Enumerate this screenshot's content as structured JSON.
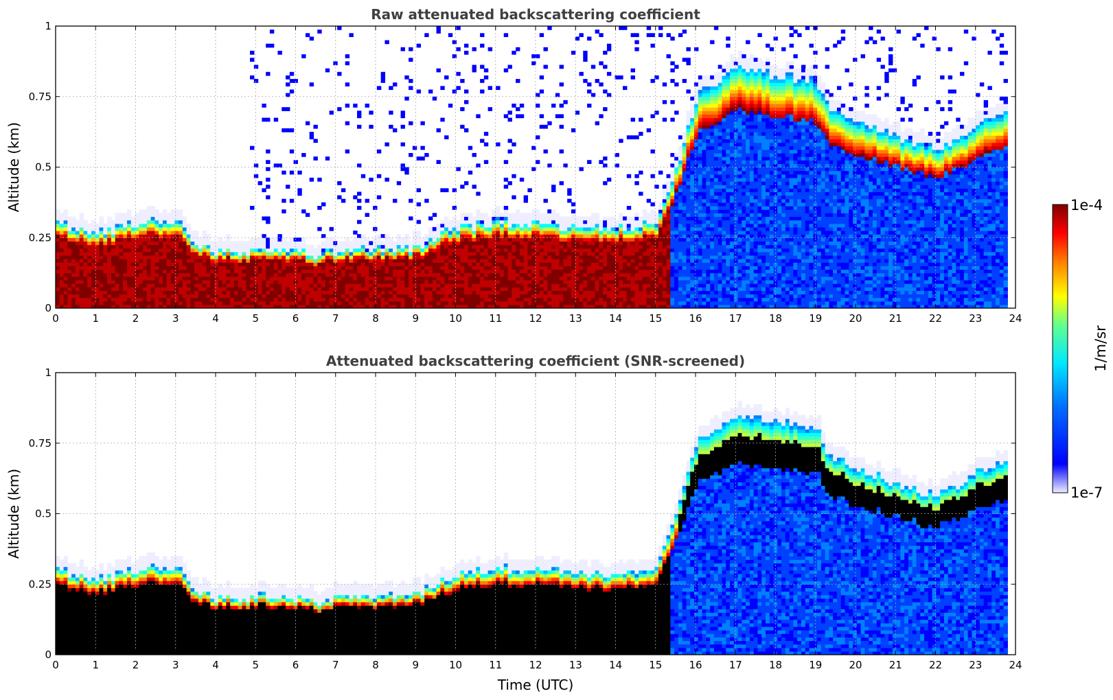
{
  "chart_data": [
    {
      "type": "heatmap",
      "title": "Raw attenuated backscattering coefficient",
      "xlabel": "",
      "ylabel": "Altitude (km)",
      "xlim": [
        0,
        24
      ],
      "ylim": [
        0,
        1
      ],
      "xticks": [
        "0",
        "1",
        "2",
        "3",
        "4",
        "5",
        "6",
        "7",
        "8",
        "9",
        "10",
        "11",
        "12",
        "13",
        "14",
        "15",
        "16",
        "17",
        "18",
        "19",
        "20",
        "21",
        "22",
        "23",
        "24"
      ],
      "yticks": [
        "0",
        "0.25",
        "0.5",
        "0.75",
        "1"
      ],
      "grid": true,
      "screened": false,
      "layer_top_km": [
        [
          0,
          0.3
        ],
        [
          1,
          0.26
        ],
        [
          2,
          0.3
        ],
        [
          3,
          0.3
        ],
        [
          3.5,
          0.22
        ],
        [
          4,
          0.2
        ],
        [
          5,
          0.2
        ],
        [
          6,
          0.2
        ],
        [
          6.5,
          0.18
        ],
        [
          7,
          0.2
        ],
        [
          8,
          0.2
        ],
        [
          9,
          0.21
        ],
        [
          9.5,
          0.25
        ],
        [
          10,
          0.28
        ],
        [
          11,
          0.3
        ],
        [
          12,
          0.3
        ],
        [
          13,
          0.28
        ],
        [
          14,
          0.28
        ],
        [
          15,
          0.3
        ],
        [
          15.5,
          0.5
        ],
        [
          16,
          0.75
        ],
        [
          17,
          0.85
        ],
        [
          18,
          0.82
        ],
        [
          19,
          0.8
        ],
        [
          19.3,
          0.7
        ],
        [
          20,
          0.66
        ],
        [
          21,
          0.6
        ],
        [
          22,
          0.56
        ],
        [
          23,
          0.64
        ],
        [
          23.8,
          0.7
        ]
      ]
    },
    {
      "type": "heatmap",
      "title": "Attenuated backscattering coefficient (SNR-screened)",
      "xlabel": "Time (UTC)",
      "ylabel": "Altitude (km)",
      "xlim": [
        0,
        24
      ],
      "ylim": [
        0,
        1
      ],
      "xticks": [
        "0",
        "1",
        "2",
        "3",
        "4",
        "5",
        "6",
        "7",
        "8",
        "9",
        "10",
        "11",
        "12",
        "13",
        "14",
        "15",
        "16",
        "17",
        "18",
        "19",
        "20",
        "21",
        "22",
        "23",
        "24"
      ],
      "yticks": [
        "0",
        "0.25",
        "0.5",
        "0.75",
        "1"
      ],
      "grid": true,
      "screened": true,
      "layer_top_km": [
        [
          0,
          0.3
        ],
        [
          1,
          0.26
        ],
        [
          2,
          0.3
        ],
        [
          3,
          0.3
        ],
        [
          3.5,
          0.22
        ],
        [
          4,
          0.2
        ],
        [
          5,
          0.2
        ],
        [
          6,
          0.2
        ],
        [
          6.5,
          0.18
        ],
        [
          7,
          0.2
        ],
        [
          8,
          0.2
        ],
        [
          9,
          0.21
        ],
        [
          9.5,
          0.25
        ],
        [
          10,
          0.28
        ],
        [
          11,
          0.3
        ],
        [
          12,
          0.3
        ],
        [
          13,
          0.28
        ],
        [
          14,
          0.28
        ],
        [
          15,
          0.3
        ],
        [
          15.5,
          0.5
        ],
        [
          16,
          0.75
        ],
        [
          17,
          0.85
        ],
        [
          18,
          0.82
        ],
        [
          19,
          0.8
        ],
        [
          19.3,
          0.7
        ],
        [
          20,
          0.66
        ],
        [
          21,
          0.6
        ],
        [
          22,
          0.56
        ],
        [
          23,
          0.64
        ],
        [
          23.8,
          0.7
        ]
      ]
    }
  ],
  "colorbar": {
    "label": "1/m/sr",
    "max_label": "1e-4",
    "min_label": "1e-7",
    "colors": [
      "#eeeeff",
      "#c8c8ff",
      "#8080ff",
      "#0000ff",
      "#0040ff",
      "#0080ff",
      "#00c0ff",
      "#00ffff",
      "#40ffc0",
      "#80ff80",
      "#c0ff40",
      "#ffff00",
      "#ffc000",
      "#ff8000",
      "#ff4000",
      "#ff0000",
      "#c00000",
      "#800000"
    ]
  }
}
